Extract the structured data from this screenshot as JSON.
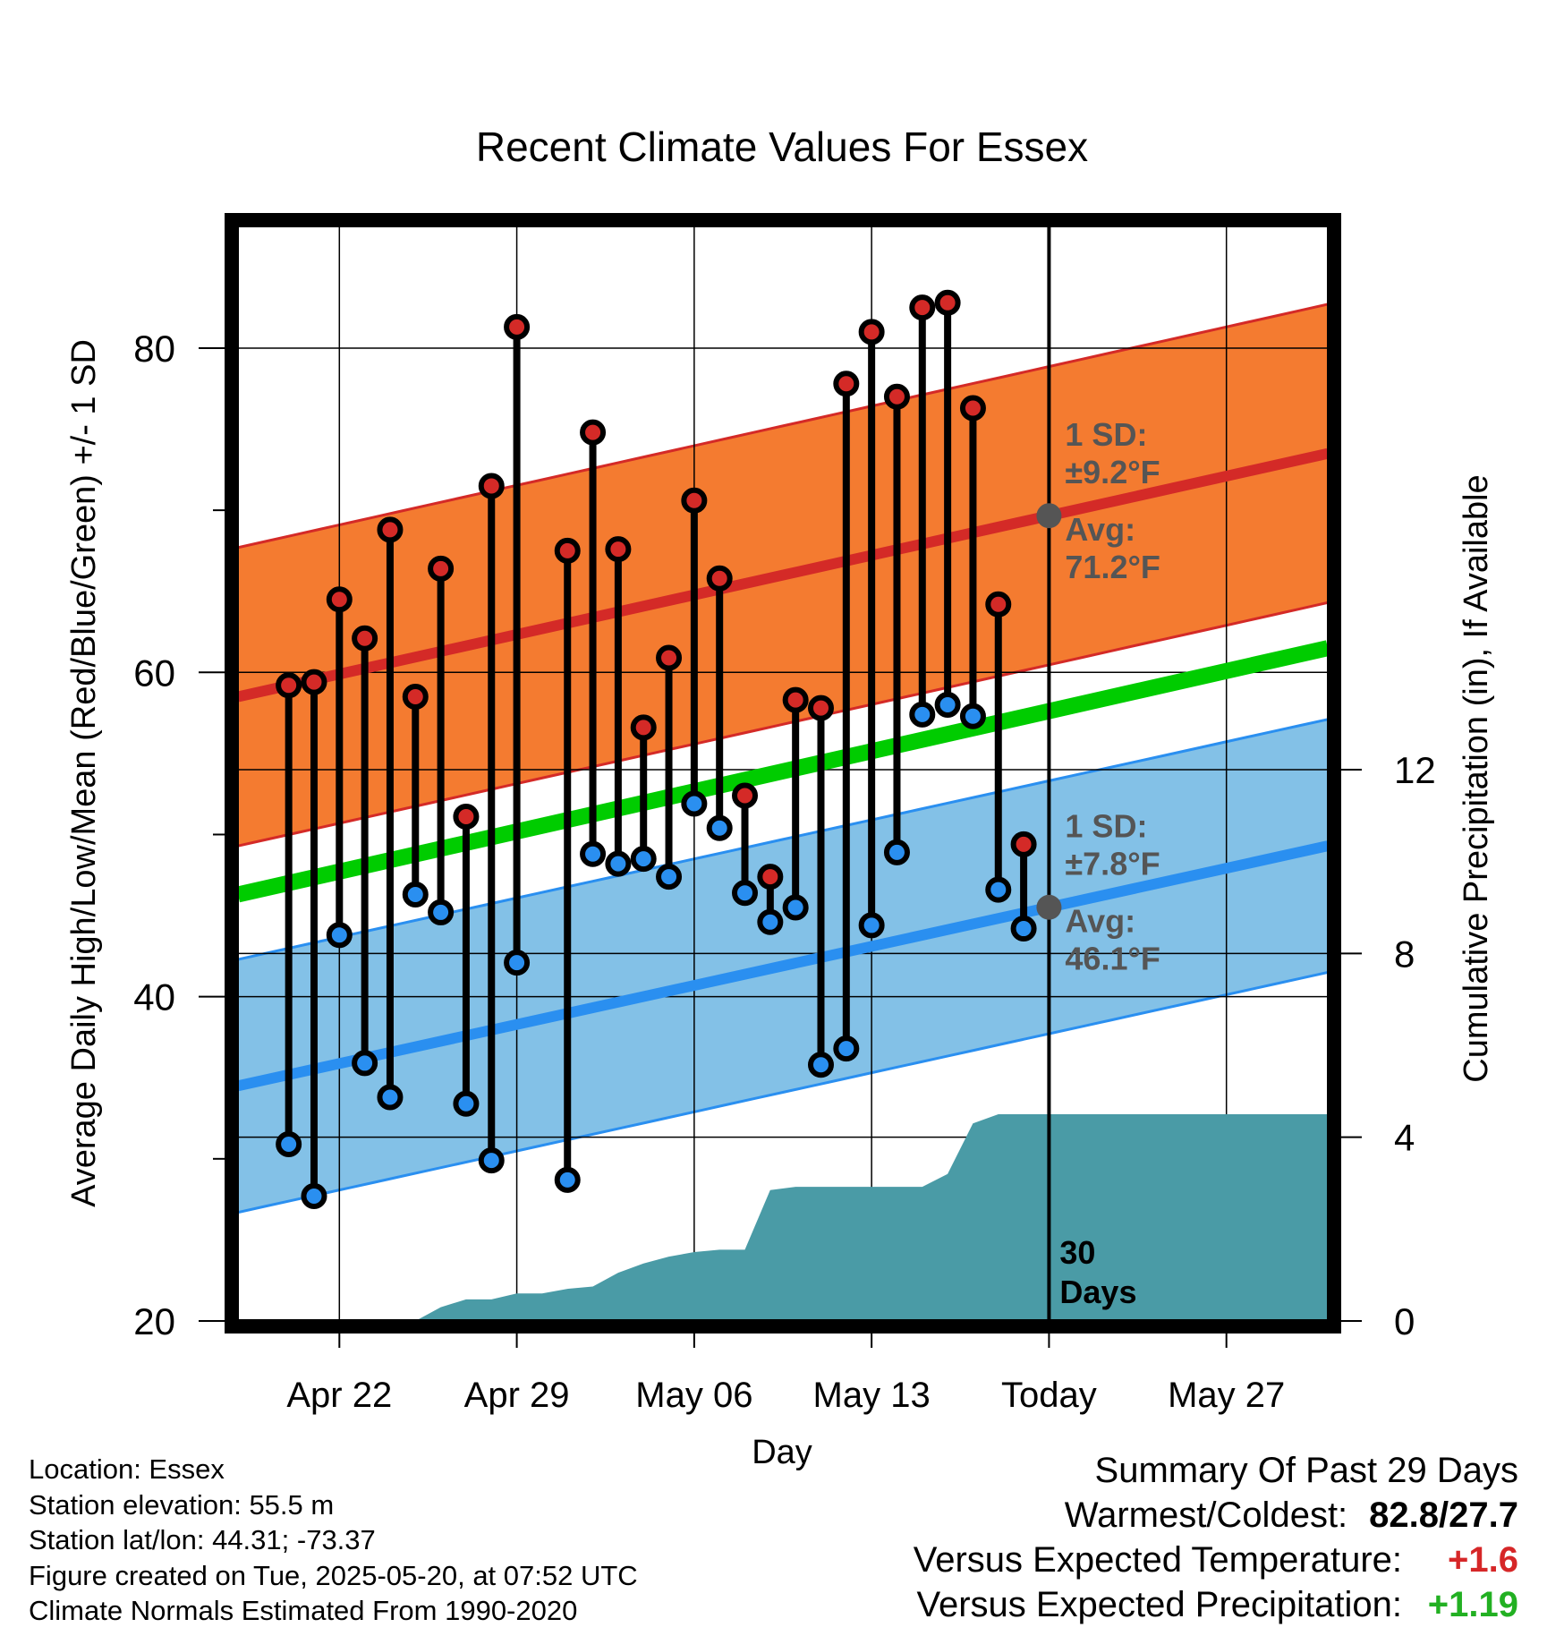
{
  "chart_data": {
    "type": "line",
    "title": "Recent Climate Values For Essex",
    "xlabel": "Day",
    "ylabel": "Average Daily High/Low/Mean (Red/Blue/Green) +/- 1 SD",
    "ylabel_right": "Cumulative Precipitation (in), If Available",
    "ylim": [
      20,
      88
    ],
    "ylim_right": [
      0,
      24
    ],
    "yticks": [
      20,
      40,
      60,
      80
    ],
    "yticks_right": [
      0,
      4,
      8,
      12
    ],
    "x_tick_labels": [
      "Apr 22",
      "Apr 29",
      "May 06",
      "May 13",
      "Today",
      "May 27"
    ],
    "dates": [
      "Apr 20",
      "Apr 21",
      "Apr 22",
      "Apr 23",
      "Apr 24",
      "Apr 25",
      "Apr 26",
      "Apr 27",
      "Apr 28",
      "Apr 29",
      "Apr 30",
      "May 01",
      "May 02",
      "May 03",
      "May 04",
      "May 05",
      "May 06",
      "May 07",
      "May 08",
      "May 09",
      "May 10",
      "May 11",
      "May 12",
      "May 13",
      "May 14",
      "May 15",
      "May 16",
      "May 17",
      "May 18",
      "May 19"
    ],
    "daily_high": [
      59.2,
      59.4,
      64.5,
      62.1,
      68.8,
      58.5,
      66.4,
      51.1,
      71.5,
      81.3,
      null,
      67.5,
      74.8,
      67.6,
      56.6,
      60.9,
      70.6,
      65.8,
      52.4,
      47.4,
      58.3,
      57.8,
      77.8,
      81.0,
      77.0,
      82.5,
      82.8,
      76.3,
      64.2,
      49.4
    ],
    "daily_low": [
      30.9,
      27.7,
      43.8,
      35.9,
      33.8,
      46.3,
      45.2,
      33.4,
      29.9,
      42.1,
      null,
      28.7,
      48.8,
      48.2,
      48.5,
      47.4,
      51.9,
      50.4,
      46.4,
      44.6,
      45.5,
      35.8,
      36.8,
      44.4,
      48.9,
      57.4,
      58.0,
      57.3,
      46.6,
      44.2
    ],
    "normal_high_avg": {
      "x": [
        "Apr 18",
        "May 31"
      ],
      "y": [
        58.5,
        73.5
      ],
      "label": "Avg:",
      "value": "71.2",
      "sd_label": "1 SD:",
      "sd_value": "±9.2"
    },
    "normal_low_avg": {
      "x": [
        "Apr 18",
        "May 31"
      ],
      "y": [
        34.5,
        49.3
      ],
      "label": "Avg:",
      "value": "46.1",
      "sd_label": "1 SD:",
      "sd_value": "±7.8"
    },
    "normal_mean": {
      "x": [
        "Apr 18",
        "May 31"
      ],
      "y": [
        46.3,
        61.5
      ]
    },
    "sd_high": 9.2,
    "sd_low": 7.8,
    "unit_text": "°F",
    "cumulative_precip": {
      "dates": [
        "Apr 18",
        "Apr 24",
        "Apr 25",
        "Apr 26",
        "Apr 27",
        "Apr 28",
        "Apr 29",
        "Apr 30",
        "May 01",
        "May 02",
        "May 03",
        "May 04",
        "May 05",
        "May 06",
        "May 07",
        "May 08",
        "May 09",
        "May 10",
        "May 11",
        "May 12",
        "May 13",
        "May 14",
        "May 15",
        "May 16",
        "May 17",
        "May 18",
        "May 31"
      ],
      "values": [
        0,
        0,
        0,
        0.3,
        0.47,
        0.47,
        0.6,
        0.6,
        0.7,
        0.75,
        1.05,
        1.25,
        1.4,
        1.5,
        1.55,
        1.55,
        2.85,
        2.92,
        2.92,
        2.92,
        2.92,
        2.92,
        2.92,
        3.2,
        4.3,
        4.5,
        4.5
      ]
    },
    "today": "May 20",
    "today_label": "30\nDays",
    "grid": true
  },
  "info": {
    "location": "Location: Essex",
    "elevation": "Station elevation: 55.5 m",
    "latlon": "Station lat/lon: 44.31; -73.37",
    "created": "Figure created on Tue, 2025-05-20, at 07:52 UTC",
    "normals": "Climate Normals Estimated From 1990-2020"
  },
  "summary": {
    "title": "Summary Of Past 29 Days",
    "warmest_label": "Warmest/Coldest:",
    "warmest_value": "82.8/27.7",
    "temp_label": "Versus Expected Temperature:",
    "temp_value": "+1.6",
    "precip_label": "Versus Expected Precipitation:",
    "precip_value": "+1.19"
  },
  "colors": {
    "high_band": "#f47b30",
    "high_line": "#d42a27",
    "low_band": "#83c1e7",
    "low_line": "#2a8ff0",
    "mean_line": "#00cc00",
    "precip": "#4a9ba6",
    "dot_high": "#d42a27",
    "dot_low": "#2a8ff0",
    "annotation": "#555555"
  }
}
